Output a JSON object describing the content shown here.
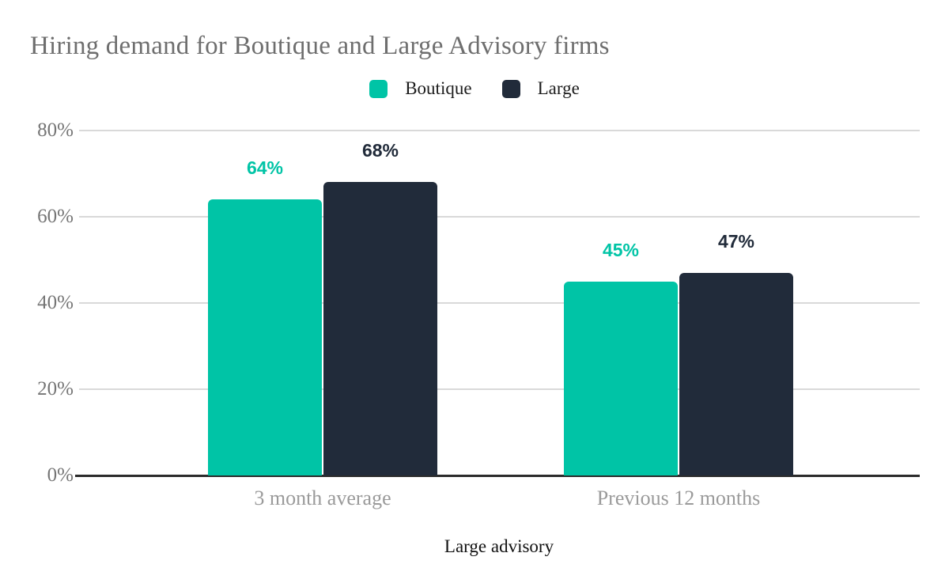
{
  "chart_data": {
    "type": "bar",
    "title": "Hiring demand for Boutique and Large Advisory firms",
    "categories": [
      "3 month average",
      "Previous 12 months"
    ],
    "series": [
      {
        "name": "Boutique",
        "color": "#00C4A6",
        "values": [
          64,
          45
        ]
      },
      {
        "name": "Large",
        "color": "#212B3A",
        "values": [
          68,
          47
        ]
      }
    ],
    "value_suffix": "%",
    "xlabel": "Large advisory",
    "ylabel": "",
    "ylim": [
      0,
      80
    ],
    "yticks": [
      0,
      20,
      40,
      60,
      80
    ],
    "ytick_labels": [
      "0%",
      "20%",
      "40%",
      "60%",
      "80%"
    ],
    "grid": true,
    "legend_position": "top",
    "colors": {
      "title_text": "#6E6E6E",
      "ytick_text": "#757575",
      "category_text": "#9A9A9A",
      "gridline": "#D9D9D9",
      "baseline": "#2B2B2B",
      "xlabel_text": "#111111",
      "legend_text": "#1C1C1C",
      "background": "#FFFFFF"
    }
  }
}
